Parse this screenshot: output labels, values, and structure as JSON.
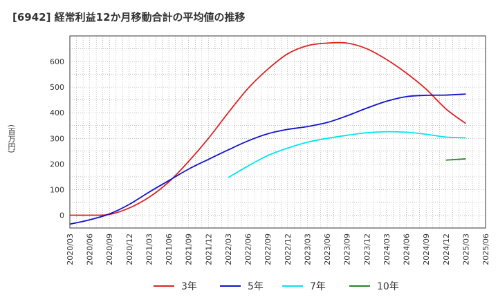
{
  "chart_data": {
    "type": "line",
    "title": "[6942]  経常利益12か月移動合計の平均値の推移",
    "ylabel": "(百万円)",
    "xlabel": "",
    "ylim": [
      -50,
      700
    ],
    "y_ticks": [
      0,
      100,
      200,
      300,
      400,
      500,
      600
    ],
    "x_ticks": [
      "2020/03",
      "2020/06",
      "2020/09",
      "2020/12",
      "2021/03",
      "2021/06",
      "2021/09",
      "2021/12",
      "2022/03",
      "2022/06",
      "2022/09",
      "2022/12",
      "2023/03",
      "2023/06",
      "2023/09",
      "2023/12",
      "2024/03",
      "2024/06",
      "2024/09",
      "2024/12",
      "2025/03",
      "2025/06"
    ],
    "grid": true,
    "legend_position": "bottom",
    "series": [
      {
        "name": "3年",
        "color": "#dd2222",
        "x": [
          "2020/03",
          "2020/06",
          "2020/09",
          "2020/12",
          "2021/03",
          "2021/06",
          "2021/09",
          "2021/12",
          "2022/03",
          "2022/06",
          "2022/09",
          "2022/12",
          "2023/03",
          "2023/06",
          "2023/09",
          "2023/12",
          "2024/03",
          "2024/06",
          "2024/09",
          "2024/12",
          "2025/03"
        ],
        "values": [
          0,
          0,
          3,
          28,
          70,
          130,
          210,
          300,
          400,
          495,
          570,
          630,
          662,
          672,
          672,
          650,
          608,
          555,
          492,
          415,
          358
        ]
      },
      {
        "name": "5年",
        "color": "#1111cc",
        "x": [
          "2020/03",
          "2020/06",
          "2020/09",
          "2020/12",
          "2021/03",
          "2021/06",
          "2021/09",
          "2021/12",
          "2022/03",
          "2022/06",
          "2022/09",
          "2022/12",
          "2023/03",
          "2023/06",
          "2023/09",
          "2023/12",
          "2024/03",
          "2024/06",
          "2024/09",
          "2024/12",
          "2025/03"
        ],
        "values": [
          -35,
          -18,
          5,
          42,
          90,
          135,
          180,
          218,
          255,
          290,
          318,
          335,
          346,
          362,
          388,
          418,
          445,
          463,
          468,
          469,
          473
        ]
      },
      {
        "name": "7年",
        "color": "#00e5ee",
        "x": [
          "2022/03",
          "2022/06",
          "2022/09",
          "2022/12",
          "2023/03",
          "2023/06",
          "2023/09",
          "2023/12",
          "2024/03",
          "2024/06",
          "2024/09",
          "2024/12",
          "2025/03"
        ],
        "values": [
          147,
          192,
          233,
          262,
          285,
          300,
          312,
          322,
          326,
          324,
          316,
          305,
          302
        ]
      },
      {
        "name": "10年",
        "color": "#228822",
        "x": [
          "2024/12",
          "2025/03"
        ],
        "values": [
          215,
          220
        ]
      }
    ]
  }
}
